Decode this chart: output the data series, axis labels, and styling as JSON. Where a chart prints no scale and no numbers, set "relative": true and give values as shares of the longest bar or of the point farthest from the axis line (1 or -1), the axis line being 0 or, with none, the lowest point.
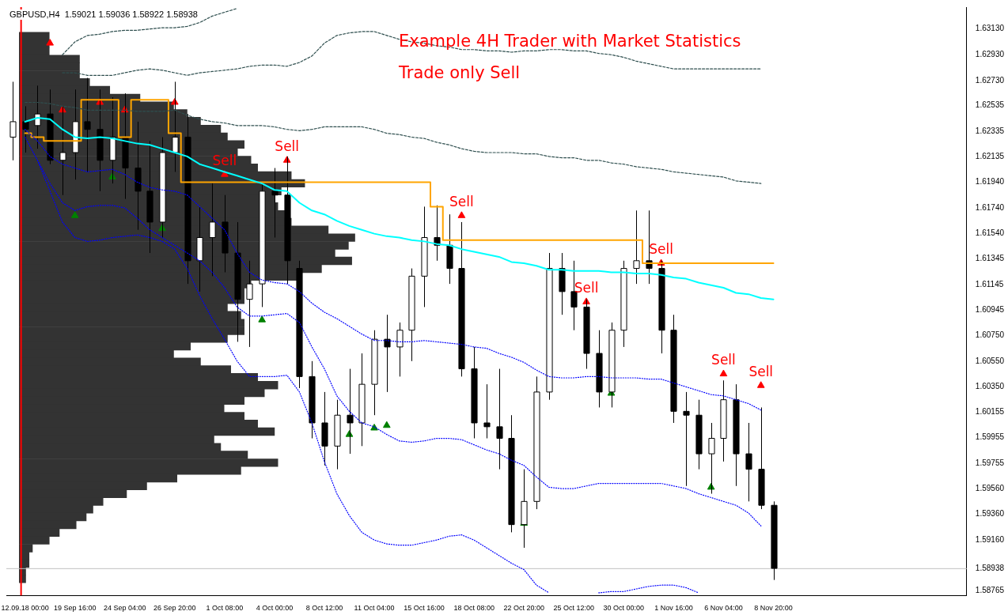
{
  "chart_data": [
    {
      "type": "bar",
      "orientation": "horizontal",
      "relative": true,
      "color": "#333333",
      "categories": [
        null,
        null,
        null,
        null,
        null,
        null,
        null,
        null,
        null,
        null,
        null,
        null,
        null,
        null,
        null,
        null,
        null,
        null,
        null,
        null,
        null,
        null,
        null,
        null,
        null,
        null,
        null,
        null,
        null,
        null,
        null,
        null,
        null,
        null,
        null,
        null,
        null,
        null,
        null,
        null,
        null,
        null,
        null,
        null,
        null,
        null,
        null,
        null,
        null,
        null,
        null,
        null,
        null,
        null,
        null,
        null,
        null,
        null,
        null,
        null,
        null,
        null,
        null,
        null,
        null,
        null,
        null,
        null,
        null,
        null,
        null
      ],
      "values": [
        0.09,
        0.09,
        0.09,
        0.18,
        0.18,
        0.18,
        0.21,
        0.27,
        0.36,
        0.46,
        0.5,
        0.54,
        0.6,
        0.62,
        0.67,
        0.65,
        0.69,
        0.71,
        0.81,
        0.85,
        0.78,
        0.76,
        0.77,
        0.79,
        0.81,
        0.92,
        1,
        0.98,
        0.94,
        0.99,
        0.9,
        0.83,
        0.69,
        0.67,
        0.67,
        0.62,
        0.66,
        0.67,
        0.67,
        0.62,
        0.51,
        0.46,
        0.54,
        0.63,
        0.71,
        0.77,
        0.73,
        0.67,
        0.61,
        0.67,
        0.71,
        0.76,
        0.58,
        0.6,
        0.68,
        0.77,
        0.66,
        0.47,
        0.38,
        0.32,
        0.25,
        0.22,
        0.2,
        0.17,
        0.12,
        0.09,
        0.04,
        0.03,
        0.03,
        0.02,
        0.02
      ]
    },
    {
      "type": "candlestick",
      "title": "Example 4H Trader with Market Statistics",
      "subtitle": "Trade only Sell",
      "annotations": [
        "GBPUSD,H4  1.59021 1.59036 1.58922 1.58938"
      ],
      "categories": [
        null,
        "12.09.18 00:00",
        null,
        null,
        null,
        "19 Sep 16:00",
        null,
        null,
        null,
        "24 Sep 04:00",
        null,
        null,
        null,
        "26 Sep 20:00",
        null,
        null,
        null,
        "1 Oct 08:00",
        null,
        null,
        null,
        "4 Oct 00:00",
        null,
        null,
        null,
        "8 Oct 12:00",
        null,
        null,
        null,
        "11 Oct 04:00",
        null,
        null,
        null,
        "15 Oct 16:00",
        null,
        null,
        null,
        "18 Oct 08:00",
        null,
        null,
        null,
        "22 Oct 20:00",
        null,
        null,
        null,
        "25 Oct 12:00",
        null,
        null,
        null,
        "30 Oct 00:00",
        null,
        null,
        null,
        "1 Nov 16:00",
        null,
        null,
        null,
        "6 Nov 04:00",
        null,
        null,
        null,
        "8 Nov 20:00",
        null,
        null,
        null,
        null,
        null,
        null,
        null,
        null,
        null,
        null,
        null,
        null,
        null,
        null,
        null
      ],
      "ohlc": [
        [
          1.6229,
          1.6272,
          1.6211,
          1.6241
        ],
        [
          1.6241,
          1.6253,
          1.6217,
          1.6235
        ],
        [
          1.6238,
          1.6269,
          1.622,
          1.6247
        ],
        [
          1.6247,
          1.6266,
          1.6208,
          1.6211
        ],
        [
          1.6211,
          1.6253,
          1.6184,
          1.6217
        ],
        [
          1.6217,
          1.6266,
          1.6196,
          1.6241
        ],
        [
          1.6241,
          1.6275,
          1.6202,
          1.6235
        ],
        [
          1.6235,
          1.6266,
          1.6187,
          1.6211
        ],
        [
          1.6211,
          1.626,
          1.6193,
          1.6229
        ],
        [
          1.6229,
          1.6263,
          1.6181,
          1.6205
        ],
        [
          1.6205,
          1.6241,
          1.6157,
          1.6187
        ],
        [
          1.6187,
          1.6226,
          1.6139,
          1.6163
        ],
        [
          1.6163,
          1.6229,
          1.6151,
          1.6217
        ],
        [
          1.6217,
          1.6272,
          1.6202,
          1.6229
        ],
        [
          1.6229,
          1.6247,
          1.6115,
          1.6133
        ],
        [
          1.6133,
          1.6175,
          1.6109,
          1.6151
        ],
        [
          1.6151,
          1.6193,
          1.6121,
          1.6163
        ],
        [
          1.6163,
          1.6184,
          1.6124,
          1.6139
        ],
        [
          1.6139,
          1.6163,
          1.607,
          1.6103
        ],
        [
          1.6103,
          1.6133,
          1.6066,
          1.6115
        ],
        [
          1.6115,
          1.6193,
          1.6097,
          1.6187
        ],
        [
          1.6187,
          1.6205,
          1.6151,
          1.6184
        ],
        [
          1.6184,
          1.6214,
          1.6115,
          1.6133
        ],
        [
          1.6127,
          1.6133,
          1.6034,
          1.6043
        ],
        [
          1.6043,
          1.6055,
          1.5995,
          1.6007
        ],
        [
          1.6007,
          1.6031,
          1.5974,
          1.5989
        ],
        [
          1.5989,
          1.6025,
          1.5971,
          1.6013
        ],
        [
          1.6013,
          1.6049,
          1.5983,
          1.6007
        ],
        [
          1.6007,
          1.6061,
          1.5989,
          1.6037
        ],
        [
          1.6037,
          1.6079,
          1.6013,
          1.6072
        ],
        [
          1.6072,
          1.6091,
          1.6031,
          1.6066
        ],
        [
          1.6066,
          1.6085,
          1.6043,
          1.6079
        ],
        [
          1.6079,
          1.6127,
          1.6055,
          1.6121
        ],
        [
          1.6121,
          1.6175,
          1.6097,
          1.6151
        ],
        [
          1.6151,
          1.6176,
          1.6133,
          1.6145
        ],
        [
          1.6145,
          1.6169,
          1.6115,
          1.6127
        ],
        [
          1.6127,
          1.6163,
          1.6043,
          1.6049
        ],
        [
          1.6049,
          1.6066,
          1.5995,
          1.6007
        ],
        [
          1.6007,
          1.6037,
          1.5995,
          1.6004
        ],
        [
          1.6004,
          1.6049,
          1.5971,
          1.5995
        ],
        [
          1.5995,
          1.6013,
          1.5922,
          1.5928
        ],
        [
          1.5928,
          1.5971,
          1.591,
          1.5946
        ],
        [
          1.5946,
          1.6043,
          1.594,
          1.6031
        ],
        [
          1.6031,
          1.6139,
          1.6025,
          1.6127
        ],
        [
          1.6127,
          1.6139,
          1.6091,
          1.6109
        ],
        [
          1.6109,
          1.6133,
          1.6079,
          1.6097
        ],
        [
          1.6097,
          1.6103,
          1.6049,
          1.6061
        ],
        [
          1.6061,
          1.6079,
          1.6019,
          1.6031
        ],
        [
          1.6031,
          1.6085,
          1.6019,
          1.6079
        ],
        [
          1.6079,
          1.6133,
          1.6066,
          1.6127
        ],
        [
          1.6127,
          1.6172,
          1.6115,
          1.6133
        ],
        [
          1.6133,
          1.6172,
          1.6115,
          1.6127
        ],
        [
          1.6127,
          1.6133,
          1.6061,
          1.6079
        ],
        [
          1.6079,
          1.6091,
          1.6007,
          1.6016
        ],
        [
          1.6016,
          1.6031,
          1.5958,
          1.6013
        ],
        [
          1.6013,
          1.6025,
          1.5971,
          1.5983
        ],
        [
          1.5983,
          1.6007,
          1.5952,
          1.5995
        ],
        [
          1.5995,
          1.604,
          1.5977,
          1.6025
        ],
        [
          1.6025,
          1.6037,
          1.5958,
          1.5983
        ],
        [
          1.5983,
          1.6007,
          1.5946,
          1.5971
        ],
        [
          1.5971,
          1.6019,
          1.594,
          1.5943
        ],
        [
          1.5943,
          1.5946,
          1.5885,
          1.5894
        ],
        null,
        null,
        null,
        null,
        null,
        null,
        null,
        null,
        null,
        null,
        null,
        null,
        null,
        null,
        null
      ],
      "ylim": [
        1.5873,
        1.633
      ],
      "yticks": [
        {
          "value": 1.58765,
          "label": "1.58765"
        },
        {
          "value": 1.58938,
          "label": "1.58938"
        },
        {
          "value": 1.5916,
          "label": "1.59160"
        },
        {
          "value": 1.5936,
          "label": "1.59360"
        },
        {
          "value": 1.5956,
          "label": "1.59560"
        },
        1.59755,
        1.59955,
        1.60155,
        {
          "value": 1.6035,
          "label": "1.60350"
        },
        {
          "value": 1.6055,
          "label": "1.60550"
        },
        {
          "value": 1.6075,
          "label": "1.60750"
        },
        1.60945,
        1.61145,
        1.61345,
        {
          "value": 1.6154,
          "label": "1.61540"
        },
        {
          "value": 1.6174,
          "label": "1.61740"
        },
        {
          "value": 1.6194,
          "label": "1.61940"
        },
        1.62135,
        1.62335,
        1.62535,
        {
          "value": 1.6273,
          "label": "1.62730"
        },
        {
          "value": 1.6293,
          "label": "1.62930"
        },
        {
          "value": 1.6313,
          "label": "1.63130"
        }
      ],
      "grid": false,
      "legend": false,
      "ref_lines": [
        {
          "axis": "x",
          "value": "12.09.18 00:00",
          "color": "#ff0000"
        },
        {
          "axis": "y",
          "value": 1.58938,
          "color": "#c0c0c0"
        }
      ],
      "series": [
        {
          "type": "line",
          "color": "#2f4f4f",
          "line_style": "dashed",
          "values": [
            null,
            null,
            null,
            null,
            1.6293,
            1.6303,
            1.6308,
            1.6309,
            1.6311,
            1.6312,
            1.6312,
            1.6313,
            1.6314,
            1.6314,
            1.6315,
            1.6318,
            1.6323,
            1.6326,
            1.6329,
            null,
            null,
            null,
            null,
            null,
            null,
            null,
            null,
            null,
            null,
            null,
            null,
            null,
            null,
            null,
            null,
            null,
            null,
            null,
            null,
            null,
            null,
            null,
            null,
            null,
            null,
            null,
            null,
            null,
            null,
            null,
            null,
            null,
            null,
            null,
            null,
            null,
            null,
            null,
            null,
            null,
            null,
            null,
            null,
            null,
            null,
            null,
            null,
            null,
            null,
            null,
            null,
            null,
            null,
            null,
            null,
            null,
            null
          ]
        },
        {
          "type": "line",
          "color": "#2f4f4f",
          "line_style": "dashed",
          "values": [
            null,
            null,
            null,
            null,
            1.6279,
            1.6279,
            1.6277,
            1.6277,
            1.6277,
            1.6279,
            1.6281,
            1.6282,
            1.6281,
            1.6279,
            1.6277,
            1.6279,
            1.628,
            1.6281,
            1.6282,
            1.6284,
            1.6285,
            1.6285,
            1.6284,
            1.6287,
            1.6292,
            1.6302,
            1.6308,
            1.631,
            1.6311,
            1.6311,
            1.6308,
            1.6305,
            1.6303,
            1.6302,
            1.63,
            1.6299,
            1.6297,
            1.6297,
            1.6296,
            1.6296,
            1.6295,
            1.6296,
            1.6296,
            1.6297,
            1.6297,
            1.6296,
            1.6296,
            1.6294,
            1.6293,
            1.6291,
            1.6288,
            1.6286,
            1.6284,
            1.6282,
            1.6282,
            1.6282,
            1.6282,
            1.6282,
            1.6282,
            1.6282,
            1.6282,
            null,
            null,
            null,
            null,
            null,
            null,
            null,
            null,
            null,
            null,
            null,
            null,
            null,
            null,
            null,
            null
          ]
        },
        {
          "type": "line",
          "color": "#2f4f4f",
          "line_style": "dashed",
          "values": [
            null,
            1.6256,
            1.6256,
            1.6255,
            1.6253,
            1.6252,
            1.625,
            1.625,
            1.625,
            1.625,
            1.6249,
            1.6249,
            1.6249,
            1.625,
            1.6246,
            1.6243,
            1.6241,
            1.624,
            1.6238,
            1.6238,
            1.6238,
            1.6237,
            1.6235,
            1.6234,
            1.6235,
            1.6237,
            1.6237,
            1.6237,
            1.6237,
            1.6235,
            1.6232,
            1.6231,
            1.6229,
            1.6228,
            1.6225,
            1.6223,
            1.622,
            1.6218,
            1.6217,
            1.6217,
            1.6217,
            1.6216,
            1.6216,
            1.6214,
            1.6213,
            1.6213,
            1.6211,
            1.6211,
            1.6209,
            1.6208,
            1.6206,
            1.6205,
            1.6204,
            1.6202,
            1.6201,
            1.62,
            1.6199,
            1.6198,
            1.6195,
            1.6194,
            1.6193,
            null,
            null,
            null,
            null,
            null,
            null,
            null,
            null,
            null,
            null,
            null,
            null,
            null,
            null,
            null,
            null
          ]
        },
        {
          "type": "line",
          "color": "#0000ff",
          "line_style": "dotted",
          "values": [
            null,
            1.6235,
            1.6226,
            1.6214,
            1.6208,
            1.6205,
            1.6202,
            1.6203,
            1.6204,
            1.62,
            1.6194,
            1.619,
            1.6188,
            1.6187,
            1.6184,
            1.6175,
            1.6166,
            1.6157,
            1.6139,
            1.6124,
            1.6118,
            1.6116,
            1.6115,
            1.6109,
            1.61,
            1.6093,
            1.6088,
            1.6082,
            1.6076,
            1.6071,
            1.6071,
            1.607,
            1.607,
            1.6071,
            1.607,
            1.6069,
            1.6068,
            1.6066,
            1.6065,
            1.6061,
            1.6058,
            1.6054,
            1.6048,
            1.6043,
            1.6042,
            1.6042,
            1.6043,
            1.6043,
            1.6042,
            1.6042,
            1.6042,
            1.6041,
            1.6041,
            1.6038,
            1.6035,
            1.6032,
            1.6029,
            1.6028,
            1.6025,
            1.6022,
            1.6017,
            null,
            null,
            null,
            null,
            null,
            null,
            null,
            null,
            null,
            null,
            null,
            null,
            null,
            null,
            null,
            null
          ]
        },
        {
          "type": "line",
          "color": "#0000ff",
          "line_style": "dotted",
          "values": [
            null,
            1.6229,
            1.6211,
            1.6193,
            1.6178,
            1.6172,
            1.6175,
            1.6176,
            1.6176,
            1.6174,
            1.6166,
            1.6157,
            1.6151,
            1.6145,
            1.6139,
            1.6133,
            1.6124,
            1.6112,
            1.6097,
            1.609,
            1.609,
            1.6091,
            1.6092,
            1.6085,
            1.6066,
            1.6049,
            1.6028,
            1.6016,
            1.6007,
            1.6004,
            1.5998,
            1.5993,
            1.5992,
            1.5993,
            1.5995,
            1.5995,
            1.5994,
            1.599,
            1.5986,
            1.5983,
            1.5978,
            1.5974,
            1.5965,
            1.5957,
            1.5956,
            1.5956,
            1.5958,
            1.596,
            1.596,
            1.596,
            1.596,
            1.596,
            1.596,
            1.5958,
            1.5956,
            1.5952,
            1.5949,
            1.5946,
            1.5943,
            1.5937,
            1.5927,
            null,
            null,
            null,
            null,
            null,
            null,
            null,
            null,
            null,
            null,
            null,
            null,
            null,
            null,
            null,
            null
          ]
        },
        {
          "type": "line",
          "color": "#0000ff",
          "line_style": "dotted",
          "values": [
            null,
            null,
            1.6211,
            1.6187,
            1.6163,
            1.6151,
            1.6148,
            1.6149,
            1.6151,
            1.6152,
            1.6153,
            1.6151,
            1.6148,
            1.6142,
            1.6127,
            1.6106,
            1.6088,
            1.6072,
            1.6055,
            1.6043,
            1.6043,
            1.6043,
            1.6044,
            1.6031,
            1.6007,
            1.5977,
            1.5952,
            1.5935,
            1.5922,
            1.5916,
            1.5913,
            1.5912,
            1.5912,
            1.5914,
            1.5916,
            1.5919,
            1.592,
            1.5916,
            1.591,
            1.5904,
            1.5898,
            1.5893,
            1.5881,
            1.5875,
            null,
            null,
            null,
            1.5875,
            1.5876,
            1.5876,
            1.5878,
            1.588,
            1.5881,
            1.5881,
            1.5879,
            1.5875,
            null,
            null,
            null,
            null,
            null,
            null,
            null,
            null,
            null,
            null,
            null,
            null,
            null,
            null,
            null,
            null,
            null,
            null,
            null,
            null,
            null
          ]
        },
        {
          "type": "line",
          "color": "#00ffff",
          "values": [
            null,
            1.6241,
            1.6244,
            1.6243,
            1.6235,
            1.6229,
            1.6228,
            1.6229,
            1.6228,
            1.6226,
            1.6224,
            1.6223,
            1.622,
            1.6217,
            1.6214,
            1.6208,
            1.6205,
            1.6202,
            1.6199,
            1.6196,
            1.6193,
            1.6188,
            1.6187,
            1.6178,
            1.6172,
            1.6169,
            1.6164,
            1.616,
            1.6157,
            1.6154,
            1.6152,
            1.6151,
            1.6149,
            1.6148,
            1.6146,
            1.6145,
            1.6142,
            1.614,
            1.6138,
            1.6136,
            1.6132,
            1.6131,
            1.6129,
            1.6126,
            1.6126,
            1.6125,
            1.6125,
            1.6125,
            1.6124,
            1.6124,
            1.6123,
            1.6123,
            1.6122,
            1.612,
            1.6119,
            1.6116,
            1.6114,
            1.6112,
            1.6108,
            1.6107,
            1.6104,
            1.6103,
            null,
            null,
            null,
            null,
            null,
            null,
            null,
            null,
            null,
            null,
            null,
            null,
            null,
            null,
            null
          ]
        },
        {
          "type": "step",
          "color": "#ffa500",
          "values": [
            null,
            1.6232,
            1.6229,
            1.6226,
            1.6226,
            1.6226,
            1.6258,
            1.6258,
            1.6258,
            1.6229,
            1.6258,
            1.6258,
            1.6258,
            1.6232,
            1.6194,
            1.6194,
            1.6194,
            1.6194,
            1.6194,
            1.6194,
            1.6194,
            1.6194,
            1.6194,
            1.6194,
            1.6194,
            1.6194,
            1.6194,
            1.6194,
            1.6194,
            1.6194,
            1.6194,
            1.6194,
            1.6194,
            1.6194,
            1.6175,
            1.6149,
            1.6149,
            1.6149,
            1.6149,
            1.6149,
            1.6149,
            1.6149,
            1.6149,
            1.6149,
            1.6149,
            1.6149,
            1.6149,
            1.6149,
            1.6149,
            1.6149,
            1.6149,
            1.6131,
            1.6131,
            1.6131,
            1.6131,
            1.6131,
            1.6131,
            1.6131,
            1.6131,
            1.6131,
            1.6131,
            1.6131,
            null,
            null,
            null,
            null,
            null,
            null,
            null,
            null,
            null,
            null,
            null,
            null,
            null,
            null,
            null
          ]
        },
        {
          "type": "scatter",
          "color": "#ff0000",
          "marker": "triangle",
          "values": [
            null,
            null,
            null,
            1.6302,
            1.625,
            null,
            null,
            1.6256,
            null,
            1.625,
            null,
            null,
            null,
            1.6256,
            null,
            null,
            null,
            1.62,
            null,
            null,
            null,
            null,
            1.6211,
            null,
            null,
            null,
            null,
            null,
            null,
            null,
            null,
            null,
            null,
            null,
            null,
            null,
            1.6168,
            null,
            null,
            null,
            null,
            null,
            null,
            null,
            null,
            null,
            1.6101,
            null,
            null,
            null,
            null,
            null,
            1.6131,
            null,
            null,
            null,
            null,
            1.6045,
            null,
            null,
            1.6036,
            null,
            null,
            null,
            null,
            null,
            null,
            null,
            null,
            null,
            null,
            null,
            null,
            null,
            null,
            null,
            null
          ],
          "value_labels": [
            null,
            null,
            null,
            null,
            null,
            null,
            null,
            null,
            null,
            null,
            null,
            null,
            null,
            null,
            null,
            null,
            null,
            "Sell",
            null,
            null,
            null,
            null,
            "Sell",
            null,
            null,
            null,
            null,
            null,
            null,
            null,
            null,
            null,
            null,
            null,
            null,
            null,
            "Sell",
            null,
            null,
            null,
            null,
            null,
            null,
            null,
            null,
            null,
            "Sell",
            null,
            null,
            null,
            null,
            null,
            "Sell",
            null,
            null,
            null,
            null,
            "Sell",
            null,
            null,
            "Sell",
            null,
            null,
            null,
            null,
            null,
            null,
            null,
            null,
            null,
            null,
            null,
            null,
            null,
            null,
            null,
            null
          ]
        },
        {
          "type": "scatter",
          "color": "#008000",
          "marker": "triangle",
          "values": [
            null,
            null,
            null,
            null,
            null,
            1.6168,
            null,
            null,
            1.6198,
            null,
            null,
            null,
            1.6158,
            null,
            null,
            null,
            null,
            null,
            null,
            null,
            1.6087,
            null,
            null,
            null,
            null,
            null,
            null,
            1.5998,
            null,
            1.6003,
            1.6005,
            null,
            null,
            null,
            null,
            null,
            null,
            null,
            null,
            null,
            null,
            1.5929,
            null,
            null,
            null,
            null,
            null,
            null,
            1.603,
            null,
            null,
            null,
            null,
            null,
            null,
            null,
            1.5957,
            null,
            null,
            null,
            null,
            null,
            null,
            null,
            null,
            null,
            null,
            null,
            null,
            null,
            null,
            null,
            null,
            null,
            null,
            null,
            null
          ]
        }
      ]
    }
  ]
}
